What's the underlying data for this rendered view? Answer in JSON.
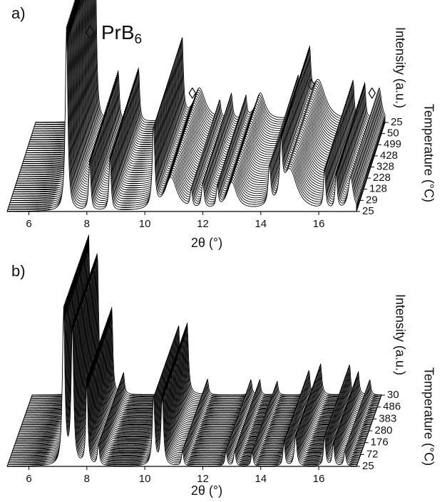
{
  "chart_data": [
    {
      "type": "waterfall",
      "panel_label": "a)",
      "xlabel": "2θ (°)",
      "ylabel": "Intensity (a.u.)",
      "zlabel": "Temperature (°C)",
      "zcategories": [
        "25",
        "29",
        "128",
        "228",
        "328",
        "428",
        "499",
        "50",
        "25"
      ],
      "xlim": [
        5.25,
        17.3
      ],
      "xticks": [
        6,
        8,
        10,
        12,
        14,
        16
      ],
      "x": [
        7.3,
        8.1,
        8.8,
        10.3,
        10.9,
        11.6,
        12.0,
        12.5,
        13.0,
        14.3,
        14.7,
        15.0,
        16.2,
        16.6,
        17.1
      ],
      "values": [
        100,
        28,
        30,
        45,
        18,
        10,
        14,
        12,
        15,
        22,
        30,
        22,
        22,
        20,
        18
      ],
      "widths": [
        0.05,
        0.04,
        0.04,
        0.05,
        0.25,
        0.04,
        0.05,
        0.04,
        0.2,
        0.05,
        0.05,
        0.3,
        0.04,
        0.04,
        0.1
      ],
      "annotations": [
        {
          "text": "◊",
          "x": 10.9
        },
        {
          "text": "◊",
          "x": 15.0
        },
        {
          "text": "◊",
          "x": 17.1
        }
      ],
      "legend": {
        "symbol": "◊",
        "label": "PrB",
        "subscript": "6"
      }
    },
    {
      "type": "waterfall",
      "panel_label": "b)",
      "xlabel": "2θ (°)",
      "ylabel": "Intensity (a.u.)",
      "zlabel": "Temperature (°C)",
      "zcategories": [
        "25",
        "72",
        "176",
        "280",
        "383",
        "486",
        "30"
      ],
      "xlim": [
        5.25,
        17.3
      ],
      "xticks": [
        6,
        8,
        10,
        12,
        14,
        16
      ],
      "x": [
        7.2,
        7.5,
        8.0,
        8.4,
        10.3,
        10.6,
        11.3,
        12.8,
        13.1,
        13.7,
        14.8,
        15.2,
        16.2,
        16.5,
        16.9
      ],
      "values": [
        100,
        90,
        55,
        14,
        45,
        45,
        10,
        10,
        10,
        9,
        16,
        20,
        20,
        15,
        10
      ],
      "widths": [
        0.05,
        0.05,
        0.04,
        0.04,
        0.05,
        0.05,
        0.04,
        0.04,
        0.04,
        0.04,
        0.04,
        0.05,
        0.04,
        0.04,
        0.04
      ]
    }
  ]
}
